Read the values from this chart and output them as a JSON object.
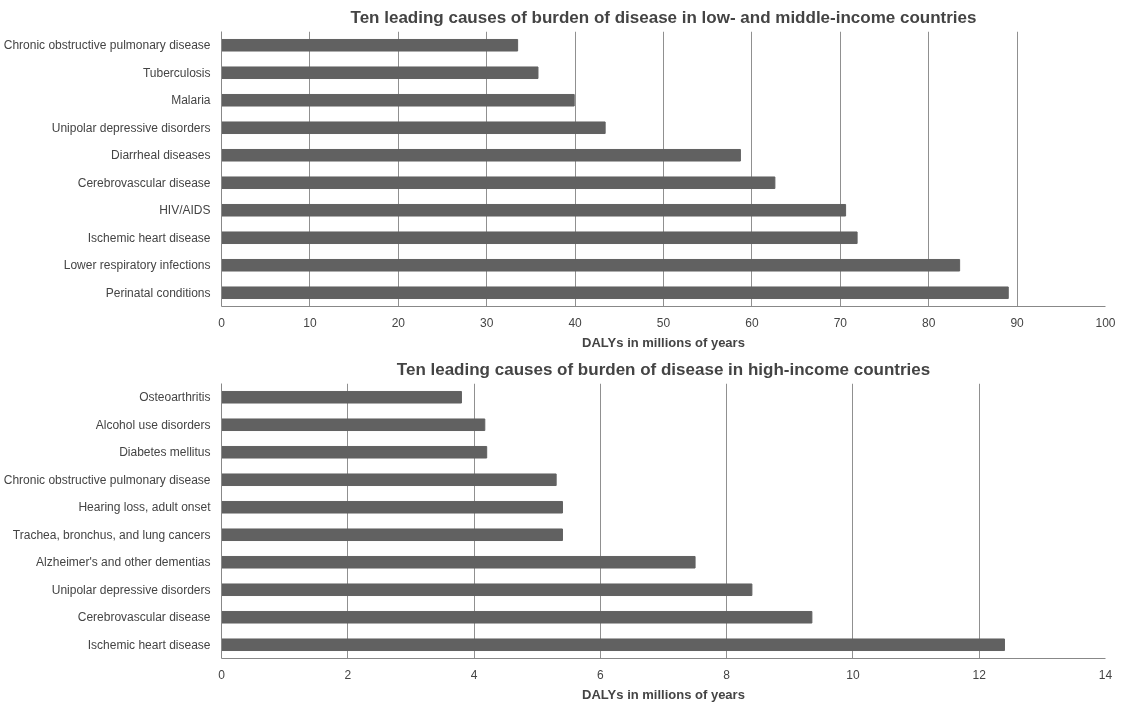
{
  "chart_data": [
    {
      "type": "bar",
      "orientation": "horizontal",
      "title": "Ten leading causes of burden of disease in low- and middle-income countries",
      "xlabel": "DALYs in millions of years",
      "categories": [
        "Chronic obstructive pulmonary disease",
        "Tuberculosis",
        "Malaria",
        "Unipolar depressive disorders",
        "Diarrheal diseases",
        "Cerebrovascular disease",
        "HIV/AIDS",
        "Ischemic heart disease",
        "Lower respiratory infections",
        "Perinatal conditions"
      ],
      "values": [
        33.5,
        35.8,
        39.9,
        43.4,
        58.7,
        62.6,
        70.6,
        71.9,
        83.5,
        89.0
      ],
      "color": "#616161",
      "xlim": [
        0,
        100
      ],
      "xticks": [
        0,
        10,
        20,
        30,
        40,
        50,
        60,
        70,
        80,
        90,
        100
      ],
      "grid": "x"
    },
    {
      "type": "bar",
      "orientation": "horizontal",
      "title": "Ten leading causes of burden of disease in high-income countries",
      "xlabel": "DALYs in millions of years",
      "categories": [
        "Osteoarthritis",
        "Alcohol use disorders",
        "Diabetes mellitus",
        "Chronic obstructive pulmonary disease",
        "Hearing loss, adult onset",
        "Trachea, bronchus, and lung cancers",
        "Alzheimer's and other dementias",
        "Unipolar depressive disorders",
        "Cerebrovascular disease",
        "Ischemic heart disease"
      ],
      "values": [
        3.8,
        4.17,
        4.2,
        5.3,
        5.4,
        5.4,
        7.5,
        8.4,
        9.35,
        12.4
      ],
      "color": "#616161",
      "xlim": [
        0,
        14
      ],
      "xticks": [
        0,
        2,
        4,
        6,
        8,
        10,
        12,
        14
      ],
      "grid": "x"
    }
  ]
}
